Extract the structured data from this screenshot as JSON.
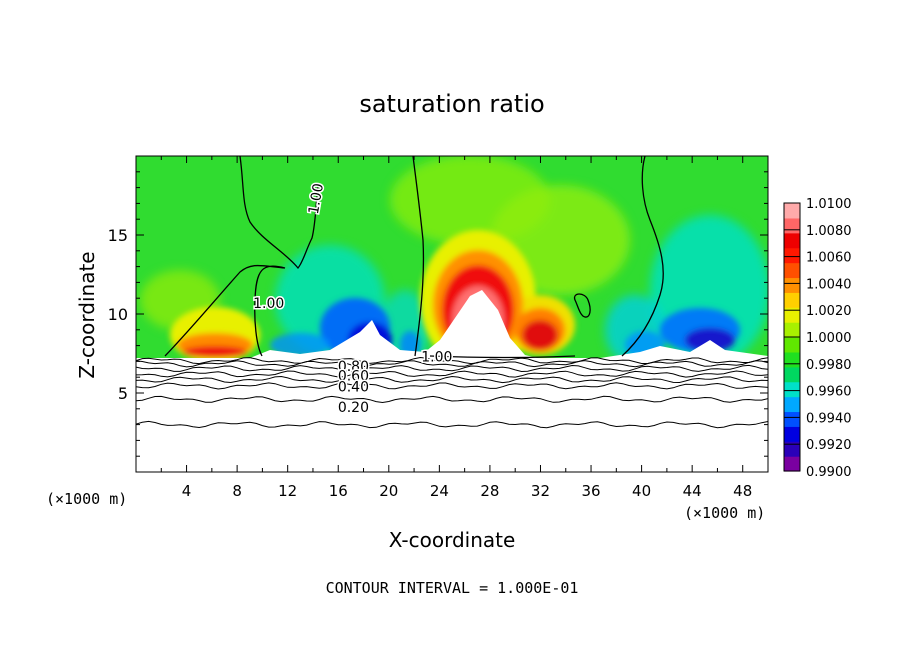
{
  "chart_data": {
    "type": "heatmap",
    "title": "saturation ratio",
    "xlabel": "X-coordinate",
    "ylabel": "Z-coordinate",
    "x_unit_left": "(×1000 m)",
    "x_unit_right": "(×1000 m)",
    "footer": "CONTOUR INTERVAL = 1.000E-01",
    "xlim": [
      0,
      50
    ],
    "ylim": [
      0,
      20
    ],
    "x_ticks": [
      4,
      8,
      12,
      16,
      20,
      24,
      28,
      32,
      36,
      40,
      44,
      48
    ],
    "x_tick_labels": [
      "4",
      "8",
      "12",
      "16",
      "20",
      "24",
      "28",
      "32",
      "36",
      "40",
      "44",
      "48"
    ],
    "y_ticks": [
      5,
      10,
      15
    ],
    "y_tick_labels": [
      "5",
      "10",
      "15"
    ],
    "colorbar": {
      "min": 0.99,
      "max": 1.01,
      "labels": [
        "1.0100",
        "1.0080",
        "1.0060",
        "1.0040",
        "1.0020",
        "1.0000",
        "0.9980",
        "0.9960",
        "0.9940",
        "0.9920",
        "0.9900"
      ],
      "colors": [
        "#7a00a0",
        "#2a00b8",
        "#0000e0",
        "#0050ff",
        "#00a8ff",
        "#00e0c8",
        "#00d860",
        "#20e020",
        "#60e800",
        "#a8f000",
        "#e8f000",
        "#ffd000",
        "#ff9000",
        "#ff5000",
        "#ff1800",
        "#ee0000",
        "#ff6666",
        "#ffaaaa"
      ]
    },
    "contour_labels": [
      {
        "text": "1.00",
        "x": 14.2,
        "y": 17.3,
        "angle": -80
      },
      {
        "text": "1.00",
        "x": 10.5,
        "y": 10.7,
        "angle": 0
      },
      {
        "text": "1.00",
        "x": 23.8,
        "y": 7.3,
        "angle": 0
      },
      {
        "text": "0.80",
        "x": 17.2,
        "y": 6.7,
        "angle": 0
      },
      {
        "text": "0.60",
        "x": 17.2,
        "y": 6.1,
        "angle": 0
      },
      {
        "text": "0.40",
        "x": 17.2,
        "y": 5.4,
        "angle": 0
      },
      {
        "text": "0.20",
        "x": 17.2,
        "y": 4.1,
        "angle": 0
      }
    ],
    "lower_contour_levels_z": [
      7.05,
      6.85,
      6.55,
      6.2,
      5.85,
      5.45,
      4.6,
      3.0
    ]
  }
}
